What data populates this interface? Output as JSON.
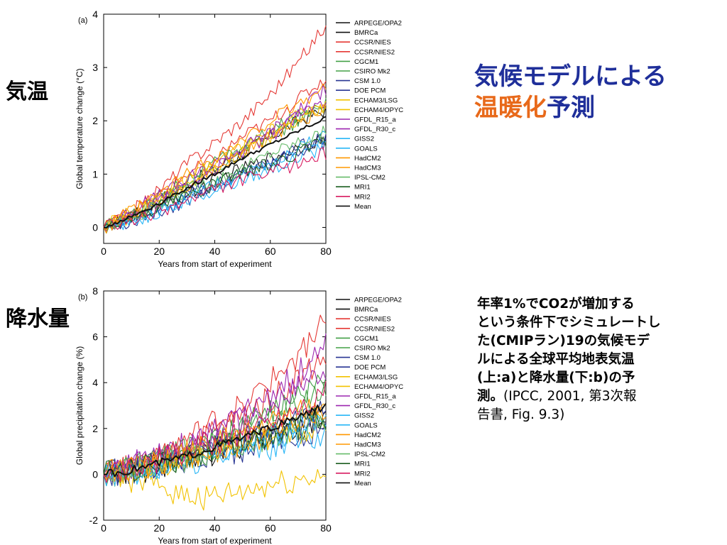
{
  "labels": {
    "temperature": "気温",
    "precipitation": "降水量"
  },
  "headline": {
    "line1": "気候モデルによる",
    "line2_accent": "温暖化",
    "line2_rest": "予測"
  },
  "caption": {
    "bold_lines": [
      "年率1%でCO2が増加する",
      "という条件下でシミュレートし",
      "た(CMIPラン)19の気候モデ",
      "ルによる全球平均地表気温",
      "(上:a)と降水量(下:b)の予",
      "測。"
    ],
    "normal_part1": "(IPCC, 2001, 第3次報",
    "normal_part2": "告書, Fig. 9.3)"
  },
  "colors": {
    "accent": "#e8691a",
    "headline": "#1f2f9a"
  },
  "models": [
    {
      "name": "ARPEGE/OPA2",
      "color": "#111111"
    },
    {
      "name": "BMRCa",
      "color": "#111111"
    },
    {
      "name": "CCSR/NIES",
      "color": "#e53935"
    },
    {
      "name": "CCSR/NIES2",
      "color": "#e53935"
    },
    {
      "name": "CGCM1",
      "color": "#43a047"
    },
    {
      "name": "CSIRO Mk2",
      "color": "#43a047"
    },
    {
      "name": "CSM 1.0",
      "color": "#283593"
    },
    {
      "name": "DOE PCM",
      "color": "#283593"
    },
    {
      "name": "ECHAM3/LSG",
      "color": "#f2c200"
    },
    {
      "name": "ECHAM4/OPYC",
      "color": "#f2c200"
    },
    {
      "name": "GFDL_R15_a",
      "color": "#9c27b0"
    },
    {
      "name": "GFDL_R30_c",
      "color": "#9c27b0"
    },
    {
      "name": "GISS2",
      "color": "#29b6f6"
    },
    {
      "name": "GOALS",
      "color": "#29b6f6"
    },
    {
      "name": "HadCM2",
      "color": "#ff9800"
    },
    {
      "name": "HadCM3",
      "color": "#ff9800"
    },
    {
      "name": "IPSL-CM2",
      "color": "#66bb6a"
    },
    {
      "name": "MRI1",
      "color": "#1b5e20"
    },
    {
      "name": "MRI2",
      "color": "#d81b60"
    },
    {
      "name": "Mean",
      "color": "#111111"
    }
  ],
  "chart_data": [
    {
      "type": "line",
      "panel_label": "(a)",
      "title": "",
      "xlabel": "Years from start of experiment",
      "ylabel": "Global temperature change (°C)",
      "xlim": [
        0,
        80
      ],
      "ylim": [
        -0.3,
        4
      ],
      "xticks": [
        0,
        20,
        40,
        60,
        80
      ],
      "yticks": [
        0,
        1,
        2,
        3,
        4
      ],
      "grid": false,
      "legend": "right",
      "x": [
        0,
        10,
        20,
        30,
        40,
        50,
        60,
        70,
        80
      ],
      "series": [
        {
          "name": "ARPEGE/OPA2",
          "values": [
            0,
            0.2,
            0.5,
            0.8,
            1.1,
            1.4,
            1.7,
            2.0,
            2.2
          ]
        },
        {
          "name": "BMRCa",
          "values": [
            0,
            0.2,
            0.4,
            0.6,
            0.9,
            1.1,
            1.3,
            1.5,
            1.7
          ]
        },
        {
          "name": "CCSR/NIES",
          "values": [
            0,
            0.3,
            0.7,
            1.2,
            1.6,
            2.0,
            2.5,
            3.1,
            3.8
          ]
        },
        {
          "name": "CCSR/NIES2",
          "values": [
            0,
            0.3,
            0.6,
            1.0,
            1.3,
            1.7,
            2.0,
            2.4,
            2.8
          ]
        },
        {
          "name": "CGCM1",
          "values": [
            0,
            0.2,
            0.6,
            0.9,
            1.2,
            1.5,
            1.8,
            2.1,
            2.4
          ]
        },
        {
          "name": "CSIRO Mk2",
          "values": [
            0,
            0.2,
            0.5,
            0.8,
            1.1,
            1.4,
            1.7,
            2.0,
            2.3
          ]
        },
        {
          "name": "CSM 1.0",
          "values": [
            0,
            0.2,
            0.4,
            0.6,
            0.8,
            1.0,
            1.2,
            1.4,
            1.6
          ]
        },
        {
          "name": "DOE PCM",
          "values": [
            0,
            0.1,
            0.3,
            0.5,
            0.8,
            1.0,
            1.2,
            1.5,
            1.7
          ]
        },
        {
          "name": "ECHAM3/LSG",
          "values": [
            0,
            0.2,
            0.5,
            0.8,
            1.1,
            1.4,
            1.7,
            2.0,
            2.3
          ]
        },
        {
          "name": "ECHAM4/OPYC",
          "values": [
            0,
            0.3,
            0.6,
            0.9,
            1.2,
            1.5,
            1.8,
            2.1,
            2.4
          ]
        },
        {
          "name": "GFDL_R15_a",
          "values": [
            0,
            0.2,
            0.5,
            0.8,
            1.1,
            1.4,
            1.7,
            2.1,
            2.4
          ]
        },
        {
          "name": "GFDL_R30_c",
          "values": [
            0,
            0.3,
            0.6,
            0.9,
            1.2,
            1.5,
            1.8,
            2.2,
            2.6
          ]
        },
        {
          "name": "GISS2",
          "values": [
            0,
            0.1,
            0.3,
            0.5,
            0.7,
            0.9,
            1.1,
            1.3,
            1.5
          ]
        },
        {
          "name": "GOALS",
          "values": [
            0,
            0.1,
            0.3,
            0.6,
            0.8,
            1.0,
            1.2,
            1.5,
            1.7
          ]
        },
        {
          "name": "HadCM2",
          "values": [
            0,
            0.2,
            0.5,
            0.8,
            1.1,
            1.4,
            1.7,
            2.0,
            2.2
          ]
        },
        {
          "name": "HadCM3",
          "values": [
            0,
            0.3,
            0.6,
            1.0,
            1.3,
            1.6,
            2.0,
            2.3,
            2.6
          ]
        },
        {
          "name": "IPSL-CM2",
          "values": [
            0,
            0.2,
            0.4,
            0.7,
            0.9,
            1.1,
            1.4,
            1.6,
            1.8
          ]
        },
        {
          "name": "MRI1",
          "values": [
            0,
            0.2,
            0.4,
            0.6,
            0.8,
            1.0,
            1.2,
            1.4,
            1.6
          ]
        },
        {
          "name": "MRI2",
          "values": [
            0,
            0.1,
            0.3,
            0.5,
            0.7,
            0.9,
            1.0,
            1.2,
            1.4
          ]
        },
        {
          "name": "Mean",
          "values": [
            0,
            0.2,
            0.45,
            0.75,
            1.0,
            1.3,
            1.55,
            1.8,
            2.05
          ]
        }
      ]
    },
    {
      "type": "line",
      "panel_label": "(b)",
      "title": "",
      "xlabel": "Years from start of experiment",
      "ylabel": "Global precipitation change (%)",
      "xlim": [
        0,
        80
      ],
      "ylim": [
        -2,
        8
      ],
      "xticks": [
        0,
        20,
        40,
        60,
        80
      ],
      "yticks": [
        -2,
        0,
        2,
        4,
        6,
        8
      ],
      "grid": false,
      "legend": "right",
      "x": [
        0,
        10,
        20,
        30,
        40,
        50,
        60,
        70,
        80
      ],
      "series": [
        {
          "name": "ARPEGE/OPA2",
          "values": [
            0,
            0.2,
            0.4,
            0.8,
            1.1,
            1.4,
            1.8,
            2.2,
            2.6
          ]
        },
        {
          "name": "BMRCa",
          "values": [
            0,
            0.1,
            0.3,
            0.6,
            1.0,
            1.3,
            1.6,
            2.0,
            2.3
          ]
        },
        {
          "name": "CCSR/NIES",
          "values": [
            0,
            0.4,
            0.9,
            1.5,
            2.3,
            3.0,
            4.0,
            5.2,
            6.8
          ]
        },
        {
          "name": "CCSR/NIES2",
          "values": [
            0,
            0.3,
            0.7,
            1.2,
            1.9,
            2.6,
            3.3,
            4.2,
            5.2
          ]
        },
        {
          "name": "CGCM1",
          "values": [
            0,
            0.3,
            0.7,
            1.1,
            1.6,
            2.1,
            2.7,
            3.3,
            4.0
          ]
        },
        {
          "name": "CSIRO Mk2",
          "values": [
            0,
            0.3,
            0.6,
            1.0,
            1.5,
            2.0,
            2.6,
            3.2,
            3.8
          ]
        },
        {
          "name": "CSM 1.0",
          "values": [
            0,
            0.1,
            0.3,
            0.6,
            0.9,
            1.1,
            1.4,
            1.7,
            2.0
          ]
        },
        {
          "name": "DOE PCM",
          "values": [
            0,
            0.2,
            0.5,
            0.8,
            1.2,
            1.5,
            1.9,
            2.3,
            2.7
          ]
        },
        {
          "name": "ECHAM3/LSG",
          "values": [
            0,
            -0.3,
            -0.6,
            -0.9,
            -1.0,
            -0.8,
            -0.5,
            -0.3,
            0.0
          ]
        },
        {
          "name": "ECHAM4/OPYC",
          "values": [
            0,
            0.2,
            0.4,
            0.7,
            1.0,
            1.3,
            1.6,
            1.9,
            2.2
          ]
        },
        {
          "name": "GFDL_R15_a",
          "values": [
            0,
            0.3,
            0.7,
            1.2,
            1.7,
            2.3,
            3.0,
            3.8,
            4.6
          ]
        },
        {
          "name": "GFDL_R30_c",
          "values": [
            0,
            0.4,
            0.8,
            1.3,
            1.9,
            2.6,
            3.4,
            4.4,
            5.6
          ]
        },
        {
          "name": "GISS2",
          "values": [
            0,
            0.1,
            0.3,
            0.5,
            0.8,
            1.0,
            1.2,
            1.5,
            1.8
          ]
        },
        {
          "name": "GOALS",
          "values": [
            0,
            0.2,
            0.4,
            0.7,
            1.0,
            1.3,
            1.6,
            2.0,
            2.4
          ]
        },
        {
          "name": "HadCM2",
          "values": [
            0,
            0.2,
            0.5,
            0.8,
            1.1,
            1.4,
            1.8,
            2.1,
            2.5
          ]
        },
        {
          "name": "HadCM3",
          "values": [
            0,
            0.2,
            0.5,
            0.9,
            1.3,
            1.7,
            2.2,
            2.7,
            3.2
          ]
        },
        {
          "name": "IPSL-CM2",
          "values": [
            0,
            0.2,
            0.4,
            0.7,
            1.0,
            1.3,
            1.6,
            2.0,
            2.3
          ]
        },
        {
          "name": "MRI1",
          "values": [
            0,
            0.2,
            0.5,
            0.8,
            1.1,
            1.4,
            1.8,
            2.1,
            2.5
          ]
        },
        {
          "name": "MRI2",
          "values": [
            0,
            0.3,
            0.6,
            1.0,
            1.4,
            1.9,
            2.4,
            3.0,
            3.6
          ]
        },
        {
          "name": "Mean",
          "values": [
            0,
            0.2,
            0.5,
            0.8,
            1.2,
            1.6,
            2.0,
            2.5,
            3.0
          ]
        }
      ]
    }
  ]
}
